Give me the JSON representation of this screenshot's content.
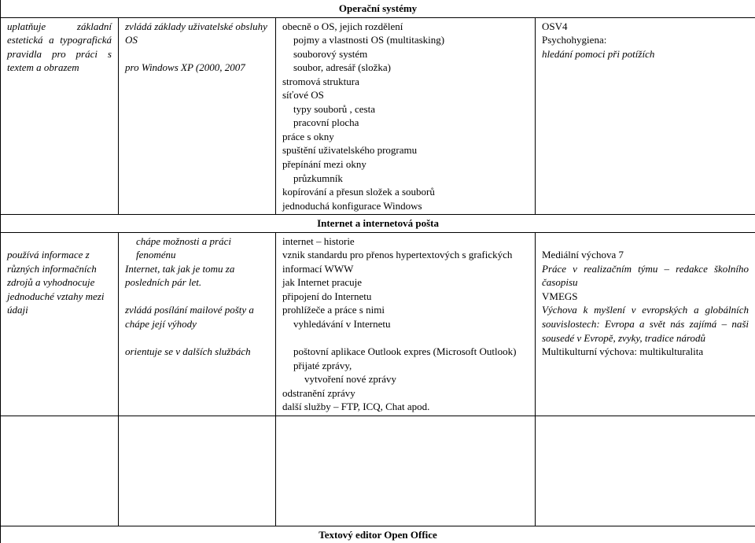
{
  "headings": {
    "os": "Operační systémy",
    "internet": "Internet  a internetová pošta",
    "editor": "Textový editor Open Office"
  },
  "row1": {
    "c1": "uplatňuje základní estetická a typografická pravidla pro práci s textem a obrazem",
    "c2_l1": "zvládá základy uživatelské obsluhy OS",
    "c2_l2": " pro Windows XP (2000, 2007",
    "c3_l1": "obecně o OS, jejich rozdělení",
    "c3_l2": "pojmy a vlastnosti OS (multitasking)",
    "c3_l3": "souborový systém",
    "c3_l4": "soubor, adresář (složka)",
    "c3_l5": "stromová struktura",
    "c3_l6": "síťové OS",
    "c3_l7": "typy souborů , cesta",
    "c3_l8": "pracovní plocha",
    "c3_l9": "práce s okny",
    "c3_l10": "spuštění uživatelského programu",
    "c3_l11": "přepínání mezi okny",
    "c3_l12": "průzkumník",
    "c3_l13": "kopírování  a přesun složek a souborů",
    "c3_l14": "jednoduchá konfigurace Windows",
    "c4_l1": "OSV4",
    "c4_l2": "Psychohygiena:",
    "c4_l3": "hledání pomoci při potížích"
  },
  "row2": {
    "c1": "používá informace z různých informačních zdrojů a vyhodnocuje jednoduché vztahy mezi údaji",
    "c2_l1": "chápe možnosti a práci fenoménu",
    "c2_l2": "Internet, tak jak je tomu za posledních pár let.",
    "c2_l3": "zvládá posílání mailové pošty a chápe její výhody",
    "c2_l4": "orientuje se v dalších službách",
    "c3_l1": "internet – historie",
    "c3_l2": "vznik standardu pro přenos hypertextových s grafických informací WWW",
    "c3_l3": "jak Internet pracuje",
    "c3_l4": "připojení do Internetu",
    "c3_l5": "prohlížeče a práce s nimi",
    "c3_l6": "vyhledávání v Internetu",
    "c3_l7": "poštovní aplikace Outlook expres (Microsoft Outlook)",
    "c3_l8": "přijaté zprávy,",
    "c3_l9": "vytvoření nové zprávy",
    "c3_l10": "odstranění zprávy",
    "c3_l11": "další služby – FTP, ICQ, Chat apod.",
    "c4_l1": "Mediální výchova 7",
    "c4_l2": "Práce v realizačním týmu – redakce školního časopisu",
    "c4_l3": "VMEGS",
    "c4_l4_a": "Výchova k myšlení v evropských a globálních souvislostech",
    "c4_l4_b": ": Evropa a svět nás zajímá – naši sousedé v Evropě, zvyky, tradice národů",
    "c4_l5": "Multikulturní výchova: multikulturalita"
  }
}
